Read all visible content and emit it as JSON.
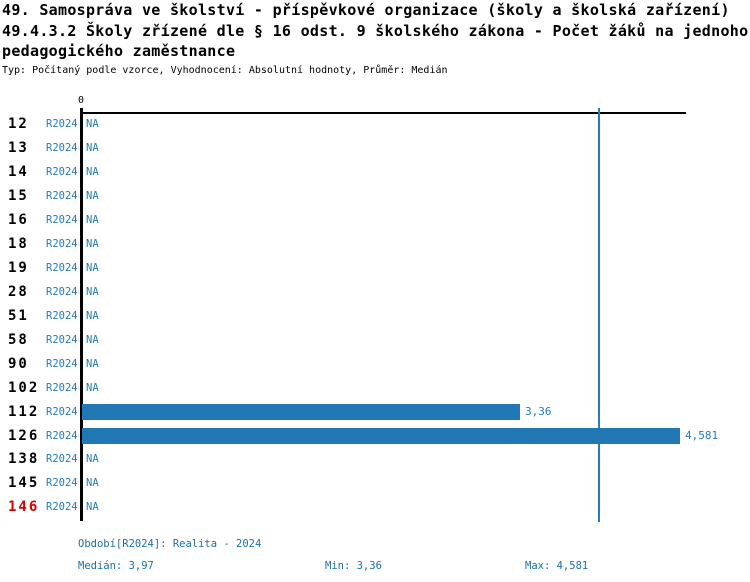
{
  "title": {
    "line1": "49. Samospráva ve školství - příspěvkové organizace (školy a školská zařízení)",
    "line2": "49.4.3.2 Školy zřízené dle § 16 odst. 9 školského zákona - Počet žáků na jednoho",
    "line3": "pedagogického zaměstnance",
    "subtitle": "Typ: Počítaný podle vzorce, Vyhodnocení: Absolutní hodnoty, Průměr: Medián"
  },
  "axis": {
    "zero_label": "0"
  },
  "rows": [
    {
      "id": "12",
      "period": "R2024",
      "na": "NA",
      "value": null
    },
    {
      "id": "13",
      "period": "R2024",
      "na": "NA",
      "value": null
    },
    {
      "id": "14",
      "period": "R2024",
      "na": "NA",
      "value": null
    },
    {
      "id": "15",
      "period": "R2024",
      "na": "NA",
      "value": null
    },
    {
      "id": "16",
      "period": "R2024",
      "na": "NA",
      "value": null
    },
    {
      "id": "18",
      "period": "R2024",
      "na": "NA",
      "value": null
    },
    {
      "id": "19",
      "period": "R2024",
      "na": "NA",
      "value": null
    },
    {
      "id": "28",
      "period": "R2024",
      "na": "NA",
      "value": null
    },
    {
      "id": "51",
      "period": "R2024",
      "na": "NA",
      "value": null
    },
    {
      "id": "58",
      "period": "R2024",
      "na": "NA",
      "value": null
    },
    {
      "id": "90",
      "period": "R2024",
      "na": "NA",
      "value": null
    },
    {
      "id": "102",
      "period": "R2024",
      "na": "NA",
      "value": null
    },
    {
      "id": "112",
      "period": "R2024",
      "value": 3.36,
      "value_label": "3,36"
    },
    {
      "id": "126",
      "period": "R2024",
      "value": 4.581,
      "value_label": "4,581"
    },
    {
      "id": "138",
      "period": "R2024",
      "na": "NA",
      "value": null
    },
    {
      "id": "145",
      "period": "R2024",
      "na": "NA",
      "value": null
    },
    {
      "id": "146",
      "period": "R2024",
      "na": "NA",
      "value": null,
      "highlight": true
    }
  ],
  "footer": {
    "period_label": "Období[R2024]: Realita - 2024",
    "median_label": "Medián: 3,97",
    "min_label": "Min: 3,36",
    "max_label": "Max: 4,581"
  },
  "colors": {
    "bar": "#2176b4",
    "blue_text": "#1f7dc0",
    "median_line": "#2b7bb9",
    "highlight_red": "#d60000",
    "axis": "#000000"
  },
  "chart_data": {
    "type": "bar",
    "orientation": "horizontal",
    "title": "49.4.3.2 Školy zřízené dle § 16 odst. 9 školského zákona - Počet žáků na jednoho pedagogického zaměstnance",
    "subtitle": "Typ: Počítaný podle vzorce, Vyhodnocení: Absolutní hodnoty, Průměr: Medián",
    "categories": [
      "12",
      "13",
      "14",
      "15",
      "16",
      "18",
      "19",
      "28",
      "51",
      "58",
      "90",
      "102",
      "112",
      "126",
      "138",
      "145",
      "146"
    ],
    "series": [
      {
        "name": "R2024",
        "label": "Realita - 2024",
        "values": [
          null,
          null,
          null,
          null,
          null,
          null,
          null,
          null,
          null,
          null,
          null,
          null,
          3.36,
          4.581,
          null,
          null,
          null
        ]
      }
    ],
    "na_label": "NA",
    "xlabel": "",
    "ylabel": "",
    "xlim": [
      0,
      4.63
    ],
    "grid": false,
    "legend_position": "bottom",
    "annotations": {
      "median": 3.97,
      "min": 3.36,
      "max": 4.581,
      "median_reference_line_at": 3.97
    }
  }
}
